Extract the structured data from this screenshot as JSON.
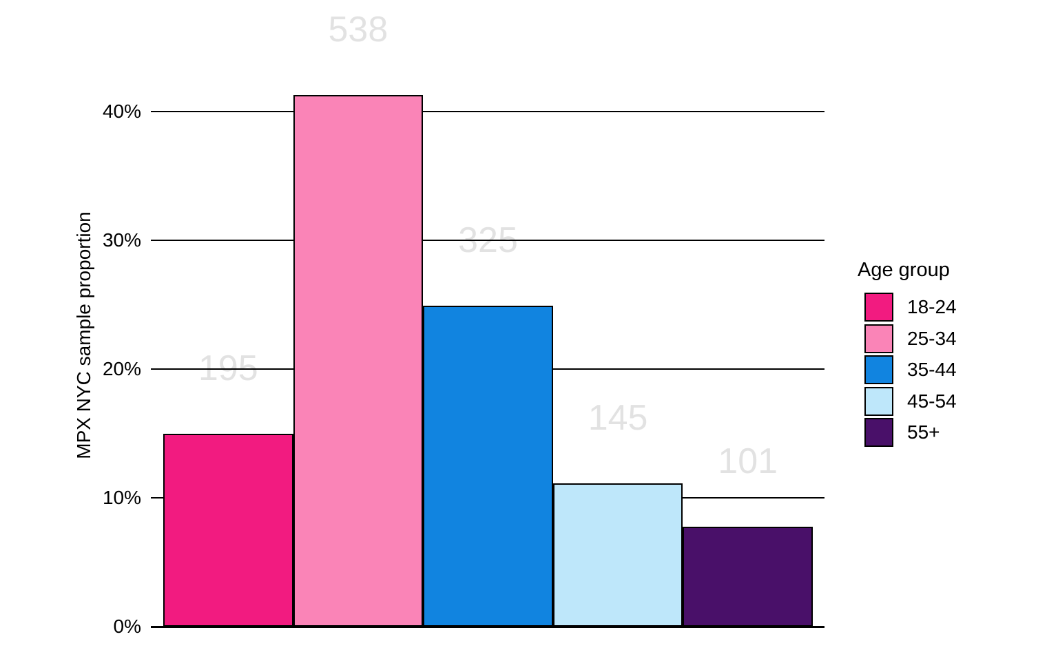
{
  "chart_data": {
    "type": "bar",
    "title": "",
    "xlabel": "",
    "ylabel": "MPX NYC sample proportion",
    "legend_title": "Age group",
    "legend_position": "right",
    "categories": [
      "18-24",
      "25-34",
      "35-44",
      "45-54",
      "55+"
    ],
    "counts": [
      195,
      538,
      325,
      145,
      101
    ],
    "values_pct": [
      14.95,
      41.26,
      24.92,
      11.12,
      7.75
    ],
    "bar_labels": [
      "195",
      "538",
      "325",
      "145",
      "101"
    ],
    "colors": [
      "#F21B80",
      "#FA84B7",
      "#1184E0",
      "#BEE7FA",
      "#491069"
    ],
    "yticks": [
      0,
      10,
      20,
      30,
      40
    ],
    "ytick_labels": [
      "0%",
      "10%",
      "20%",
      "30%",
      "40%"
    ],
    "ylim": [
      0,
      44
    ],
    "grid": "horizontal solid black lines, drawn behind bars",
    "bar_outline_color": "#000000",
    "bar_label_color": "#E2E2E2",
    "axis_color": "#000000",
    "background_color": "#FFFFFF"
  }
}
